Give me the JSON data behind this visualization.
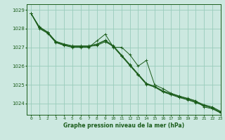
{
  "title": "Graphe pression niveau de la mer (hPa)",
  "background_color": "#cce8e0",
  "grid_color": "#99ccbb",
  "line_color": "#1a5c1a",
  "xlim": [
    -0.5,
    23
  ],
  "ylim": [
    1023.4,
    1029.3
  ],
  "xticks": [
    0,
    1,
    2,
    3,
    4,
    5,
    6,
    7,
    8,
    9,
    10,
    11,
    12,
    13,
    14,
    15,
    16,
    17,
    18,
    19,
    20,
    21,
    22,
    23
  ],
  "yticks": [
    1024,
    1025,
    1026,
    1027,
    1028,
    1029
  ],
  "series": [
    [
      1028.8,
      1028.0,
      1027.75,
      1027.25,
      1027.1,
      1027.0,
      1027.0,
      1027.0,
      1027.35,
      1027.7,
      1027.0,
      1027.0,
      1026.6,
      1026.0,
      1026.3,
      1025.0,
      1024.8,
      1024.55,
      1024.4,
      1024.28,
      1024.15,
      1023.82,
      1023.72,
      1023.5
    ],
    [
      1028.8,
      1028.05,
      1027.8,
      1027.3,
      1027.15,
      1027.05,
      1027.05,
      1027.05,
      1027.1,
      1027.3,
      1027.05,
      1026.55,
      1026.05,
      1025.55,
      1025.05,
      1024.9,
      1024.65,
      1024.5,
      1024.35,
      1024.22,
      1024.08,
      1023.9,
      1023.78,
      1023.55
    ],
    [
      1028.8,
      1028.05,
      1027.78,
      1027.28,
      1027.12,
      1027.02,
      1027.02,
      1027.02,
      1027.15,
      1027.35,
      1027.02,
      1026.52,
      1026.02,
      1025.52,
      1025.02,
      1024.88,
      1024.62,
      1024.47,
      1024.32,
      1024.2,
      1024.05,
      1023.88,
      1023.75,
      1023.52
    ],
    [
      1028.8,
      1028.1,
      1027.82,
      1027.32,
      1027.18,
      1027.08,
      1027.08,
      1027.08,
      1027.18,
      1027.38,
      1027.08,
      1026.58,
      1026.08,
      1025.58,
      1025.08,
      1024.92,
      1024.68,
      1024.53,
      1024.38,
      1024.26,
      1024.12,
      1023.94,
      1023.82,
      1023.59
    ]
  ]
}
